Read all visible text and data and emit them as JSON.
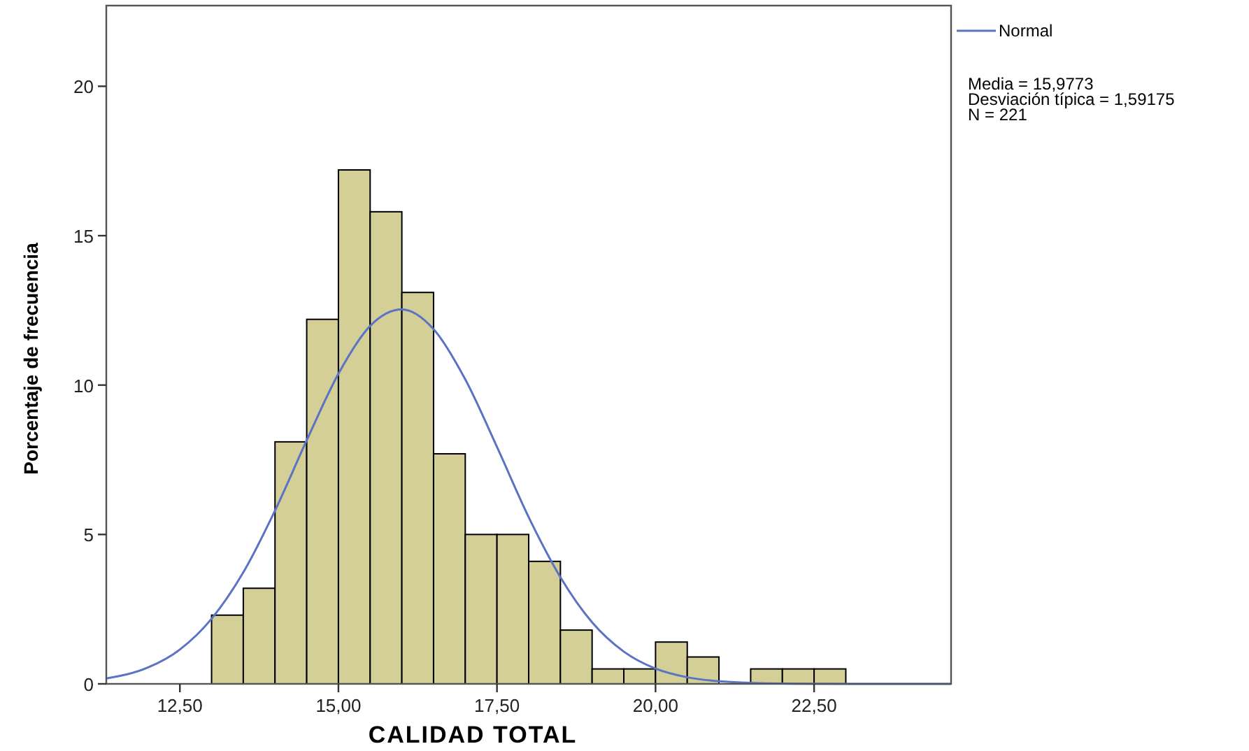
{
  "chart_data": {
    "type": "histogram",
    "xlabel": "CALIDAD TOTAL",
    "ylabel": "Porcentaje de frecuencia",
    "bins": [
      13,
      13.5,
      14,
      14.5,
      15,
      15.5,
      16,
      16.5,
      17,
      17.5,
      18,
      18.5,
      19,
      19.5,
      20,
      20.5,
      21,
      21.5,
      22,
      22.5,
      23
    ],
    "series": [
      {
        "type": "histogram",
        "color": "#d3cf96",
        "values": [
          2.3,
          3.2,
          8.1,
          12.2,
          17.2,
          15.8,
          13.1,
          7.7,
          5.0,
          5.0,
          4.1,
          1.8,
          0.5,
          0.5,
          1.4,
          0.9,
          0,
          0.5,
          0.5,
          0.5
        ]
      },
      {
        "type": "line",
        "name": "Normal",
        "color": "#5b73c4",
        "x": [
          11.34,
          12,
          12.5,
          13,
          13.5,
          14,
          14.5,
          15,
          15.5,
          16,
          16.5,
          17,
          17.5,
          18,
          18.5,
          19,
          19.5,
          20,
          20.5,
          21,
          22,
          23,
          24.66
        ],
        "values": [
          0.18,
          0.55,
          1.15,
          2.18,
          3.73,
          5.8,
          8.15,
          10.38,
          11.98,
          12.53,
          11.87,
          10.19,
          7.93,
          5.58,
          3.57,
          2.06,
          1.08,
          0.51,
          0.22,
          0.09,
          0.01,
          0,
          0
        ]
      }
    ],
    "xlim": [
      11.34,
      24.66
    ],
    "ylim": [
      0,
      22.7
    ],
    "xticks": [
      {
        "value": 12.5,
        "label": "12,50"
      },
      {
        "value": 15,
        "label": "15,00"
      },
      {
        "value": 17.5,
        "label": "17,50"
      },
      {
        "value": 20,
        "label": "20,00"
      },
      {
        "value": 22.5,
        "label": "22,50"
      }
    ],
    "yticks": [
      0,
      5,
      10,
      15,
      20
    ],
    "grid": false,
    "legend": "top right",
    "marker": "none",
    "annotations": [
      "Media = 15,9773",
      "Desviación típica = 1,59175",
      "N = 221"
    ]
  }
}
